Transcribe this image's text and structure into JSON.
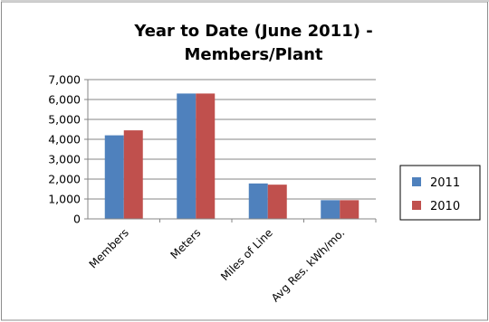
{
  "chart_data": {
    "type": "bar",
    "title_lines": [
      "Year to Date  (June 2011) -",
      "Members/Plant"
    ],
    "categories": [
      "Members",
      "Meters",
      "Miles of Line",
      "Avg Res. kWh/mo."
    ],
    "series": [
      {
        "name": "2011",
        "color": "#4f81bd",
        "values": [
          4200,
          6300,
          1780,
          940
        ]
      },
      {
        "name": "2010",
        "color": "#c0504d",
        "values": [
          4450,
          6300,
          1720,
          940
        ]
      }
    ],
    "yticks": [
      "0",
      "1,000",
      "2,000",
      "3,000",
      "4,000",
      "5,000",
      "6,000",
      "7,000"
    ],
    "ylim": [
      0,
      7000
    ],
    "xlabel": "",
    "ylabel": "",
    "grid": true,
    "legend_position": "right"
  }
}
